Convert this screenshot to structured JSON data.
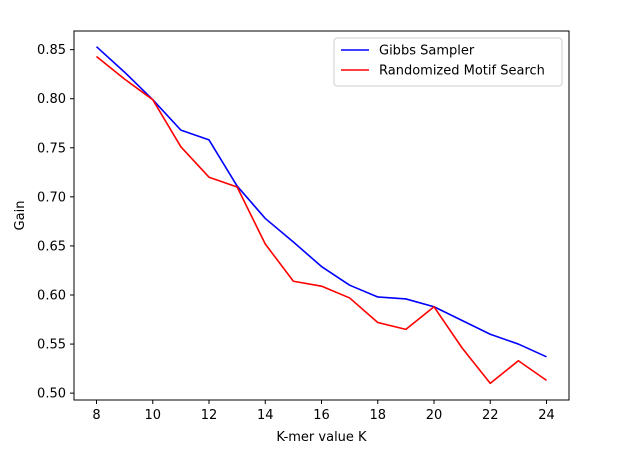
{
  "chart_data": {
    "type": "line",
    "title": "",
    "xlabel": "K-mer value K",
    "ylabel": "Gain",
    "xlim": [
      7.2,
      24.8
    ],
    "ylim": [
      0.493,
      0.869
    ],
    "xticks": [
      8,
      10,
      12,
      14,
      16,
      18,
      20,
      22,
      24
    ],
    "yticks": [
      0.5,
      0.55,
      0.6,
      0.65,
      0.7,
      0.75,
      0.8,
      0.85
    ],
    "xtick_labels": [
      "8",
      "10",
      "12",
      "14",
      "16",
      "18",
      "20",
      "22",
      "24"
    ],
    "ytick_labels": [
      "0.50",
      "0.55",
      "0.60",
      "0.65",
      "0.70",
      "0.75",
      "0.80",
      "0.85"
    ],
    "grid": false,
    "legend": "top-right",
    "x": [
      8,
      9,
      10,
      11,
      12,
      13,
      14,
      15,
      16,
      17,
      18,
      19,
      20,
      21,
      22,
      23,
      24
    ],
    "series": [
      {
        "name": "Gibbs Sampler",
        "color": "#0000ff",
        "values": [
          0.853,
          0.827,
          0.799,
          0.768,
          0.758,
          0.711,
          0.678,
          0.654,
          0.629,
          0.61,
          0.598,
          0.596,
          0.588,
          0.574,
          0.56,
          0.55,
          0.537
        ]
      },
      {
        "name": "Randomized Motif Search",
        "color": "#ff0000",
        "values": [
          0.843,
          0.82,
          0.799,
          0.751,
          0.72,
          0.71,
          0.652,
          0.614,
          0.609,
          0.597,
          0.572,
          0.565,
          0.588,
          0.546,
          0.51,
          0.533,
          0.513
        ]
      }
    ]
  }
}
